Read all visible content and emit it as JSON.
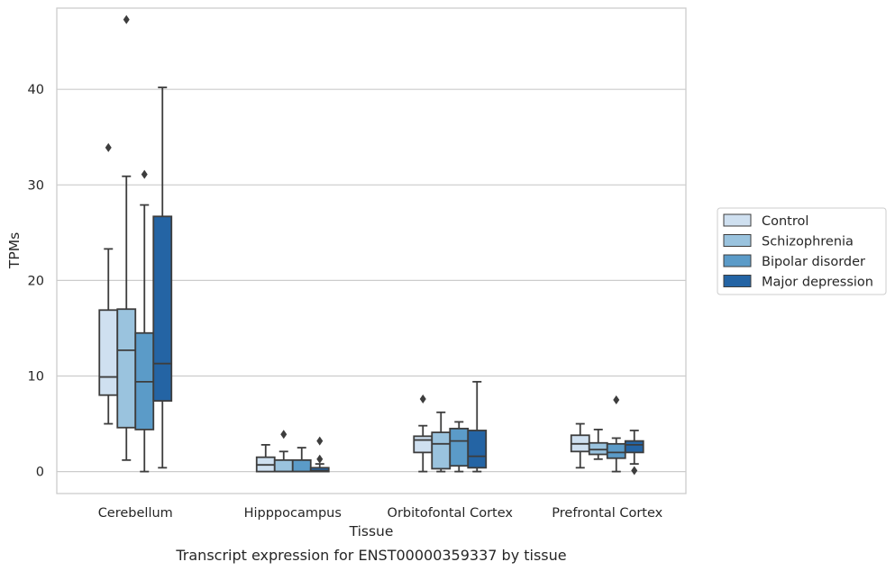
{
  "chart_data": {
    "type": "box",
    "caption": "Transcript expression for ENST00000359337 by tissue",
    "xlabel": "Tissue",
    "ylabel": "TPMs",
    "ylim": [
      -2.3,
      48.5
    ],
    "yticks": [
      0,
      10,
      20,
      30,
      40
    ],
    "grid": "horizontal",
    "legend_position": "right",
    "categories": [
      "Cerebellum",
      "Hipppocampus",
      "Orbitofontal Cortex",
      "Prefrontal Cortex"
    ],
    "series": [
      {
        "name": "Control",
        "color": "#cfe0f0",
        "boxes": [
          {
            "whislo": 5.0,
            "q1": 8.0,
            "med": 9.9,
            "q3": 16.9,
            "whishi": 23.3,
            "fliers": [
              33.9
            ]
          },
          {
            "whislo": 0.0,
            "q1": 0.0,
            "med": 0.7,
            "q3": 1.5,
            "whishi": 2.8,
            "fliers": []
          },
          {
            "whislo": 0.0,
            "q1": 2.0,
            "med": 3.3,
            "q3": 3.7,
            "whishi": 4.8,
            "fliers": [
              7.6
            ]
          },
          {
            "whislo": 0.4,
            "q1": 2.1,
            "med": 2.9,
            "q3": 3.8,
            "whishi": 5.0,
            "fliers": []
          }
        ]
      },
      {
        "name": "Schizophrenia",
        "color": "#9ac3de",
        "boxes": [
          {
            "whislo": 1.2,
            "q1": 4.6,
            "med": 12.7,
            "q3": 17.0,
            "whishi": 30.9,
            "fliers": [
              47.3
            ]
          },
          {
            "whislo": 0.0,
            "q1": 0.0,
            "med": 0.0,
            "q3": 1.2,
            "whishi": 2.1,
            "fliers": [
              3.9
            ]
          },
          {
            "whislo": 0.0,
            "q1": 0.3,
            "med": 2.9,
            "q3": 4.1,
            "whishi": 6.2,
            "fliers": []
          },
          {
            "whislo": 1.3,
            "q1": 1.8,
            "med": 2.3,
            "q3": 3.0,
            "whishi": 4.4,
            "fliers": []
          }
        ]
      },
      {
        "name": "Bipolar disorder",
        "color": "#5b9bc8",
        "boxes": [
          {
            "whislo": 0.0,
            "q1": 4.4,
            "med": 9.4,
            "q3": 14.5,
            "whishi": 27.9,
            "fliers": [
              31.1
            ]
          },
          {
            "whislo": 0.0,
            "q1": 0.0,
            "med": 0.0,
            "q3": 1.2,
            "whishi": 2.5,
            "fliers": []
          },
          {
            "whislo": 0.0,
            "q1": 0.6,
            "med": 3.2,
            "q3": 4.5,
            "whishi": 5.2,
            "fliers": []
          },
          {
            "whislo": 0.0,
            "q1": 1.4,
            "med": 2.0,
            "q3": 2.9,
            "whishi": 3.5,
            "fliers": [
              7.5
            ]
          }
        ]
      },
      {
        "name": "Major depression",
        "color": "#2464a4",
        "boxes": [
          {
            "whislo": 0.4,
            "q1": 7.4,
            "med": 11.3,
            "q3": 26.7,
            "whishi": 40.2,
            "fliers": []
          },
          {
            "whislo": 0.0,
            "q1": 0.0,
            "med": 0.1,
            "q3": 0.4,
            "whishi": 0.8,
            "fliers": [
              1.3,
              3.2
            ]
          },
          {
            "whislo": 0.0,
            "q1": 0.4,
            "med": 1.6,
            "q3": 4.3,
            "whishi": 9.4,
            "fliers": []
          },
          {
            "whislo": 0.8,
            "q1": 2.0,
            "med": 2.8,
            "q3": 3.2,
            "whishi": 4.3,
            "fliers": [
              0.1
            ]
          }
        ]
      }
    ]
  }
}
